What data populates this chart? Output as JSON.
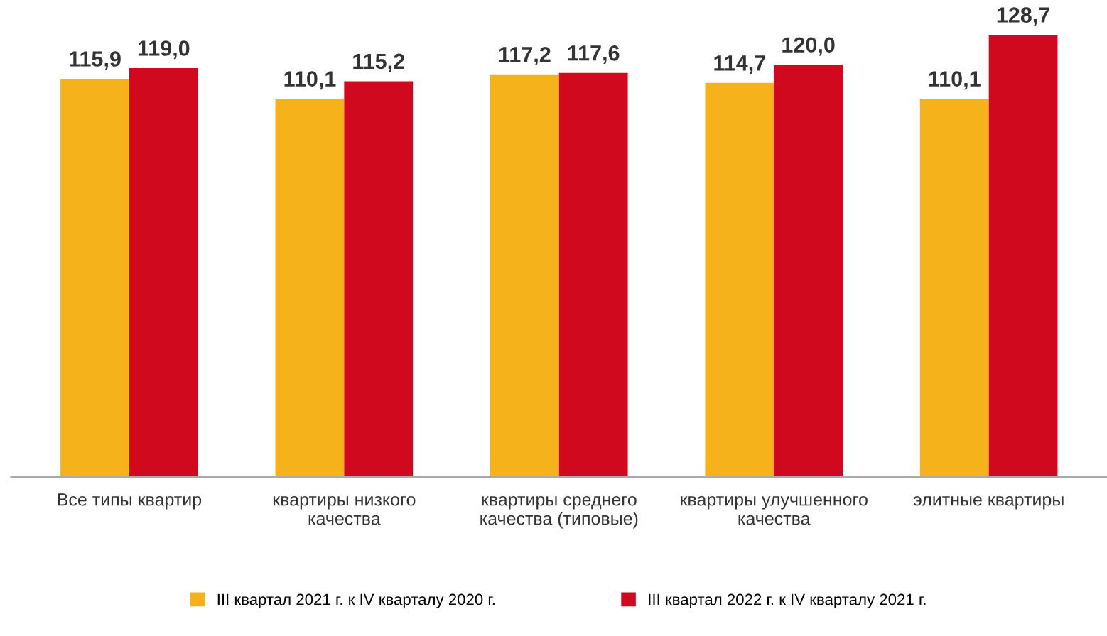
{
  "chart_data": {
    "type": "bar",
    "categories": [
      "Все типы квартир",
      "квартиры низкого\nкачества",
      "квартиры среднего\nкачества (типовые)",
      "квартиры улучшенного\nкачества",
      "элитные квартиры"
    ],
    "series": [
      {
        "name": "III квартал 2021 г. к IV кварталу 2020 г.",
        "color": "#f6b21a",
        "values": [
          115.9,
          110.1,
          117.2,
          114.7,
          110.1
        ],
        "value_labels": [
          "115,9",
          "110,1",
          "117,2",
          "114,7",
          "110,1"
        ]
      },
      {
        "name": "III квартал 2022 г. к IV кварталу 2021 г.",
        "color": "#d0091f",
        "values": [
          119.0,
          115.2,
          117.6,
          120.0,
          128.7
        ],
        "value_labels": [
          "119,0",
          "115,2",
          "117,6",
          "120,0",
          "128,7"
        ]
      }
    ],
    "legend": "bottom",
    "grid": false
  }
}
